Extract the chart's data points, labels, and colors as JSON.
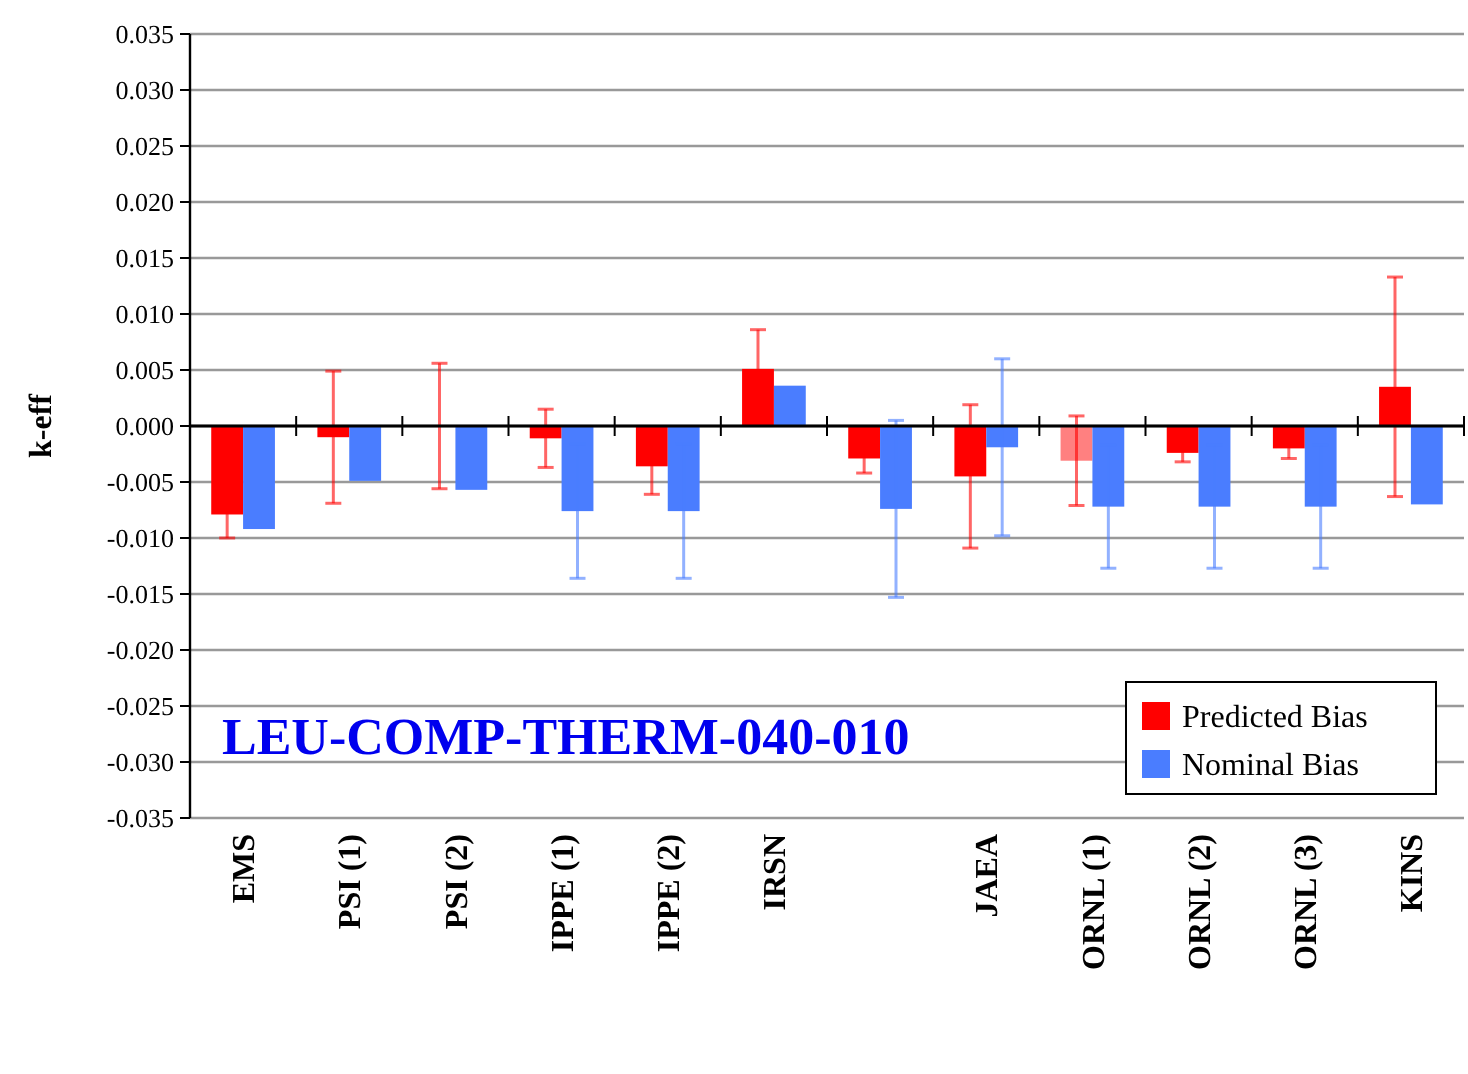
{
  "chart_data": {
    "type": "bar",
    "ylabel": "k-eff",
    "categories": [
      "EMS",
      "PSI (1)",
      "PSI (2)",
      "IPPE (1)",
      "IPPE (2)",
      "IRSN",
      null,
      "JAEA",
      "ORNL (1)",
      "ORNL (2)",
      "ORNL (3)",
      "KINS"
    ],
    "series": [
      {
        "name": "Predicted Bias",
        "color": "#ff0000",
        "colors": [
          "#ff0000",
          "#ff0000",
          "#ff0000",
          "#ff0000",
          "#ff0000",
          "#ff0000",
          "#ff0000",
          "#ff0000",
          "#ff8080",
          "#ff0000",
          "#ff0000",
          "#ff0000"
        ],
        "values": [
          -0.0079,
          -0.001,
          0,
          -0.0011,
          -0.0036,
          0.0051,
          -0.0029,
          -0.0045,
          -0.0031,
          -0.0024,
          -0.002,
          0.0035
        ],
        "errors": [
          0.0021,
          0.0059,
          0.0056,
          0.0026,
          0.0025,
          0.0035,
          0.0013,
          0.0064,
          0.004,
          0.0008,
          0.0009,
          0.0098
        ]
      },
      {
        "name": "Nominal Bias",
        "color": "#4a7dff",
        "values": [
          -0.0092,
          -0.0049,
          -0.0057,
          -0.0076,
          -0.0076,
          0.0036,
          -0.0074,
          -0.0019,
          -0.0072,
          -0.0072,
          -0.0072,
          -0.007
        ],
        "errors": [
          null,
          null,
          null,
          0.006,
          0.006,
          null,
          0.0079,
          0.0079,
          0.0055,
          0.0055,
          0.0055,
          null
        ]
      }
    ],
    "ylim": [
      -0.035,
      0.035
    ],
    "yticks": [
      {
        "value": 0.035,
        "label": "0.035"
      },
      {
        "value": 0.03,
        "label": "0.030"
      },
      {
        "value": 0.025,
        "label": "0.025"
      },
      {
        "value": 0.02,
        "label": "0.020"
      },
      {
        "value": 0.015,
        "label": "0.015"
      },
      {
        "value": 0.01,
        "label": "0.010"
      },
      {
        "value": 0.005,
        "label": "0.005"
      },
      {
        "value": 0,
        "label": "0.000"
      },
      {
        "value": -0.005,
        "label": "-0.005"
      },
      {
        "value": -0.01,
        "label": "-0.010"
      },
      {
        "value": -0.015,
        "label": "-0.015"
      },
      {
        "value": -0.02,
        "label": "-0.020"
      },
      {
        "value": -0.025,
        "label": "-0.025"
      },
      {
        "value": -0.03,
        "label": "-0.030"
      },
      {
        "value": -0.035,
        "label": "-0.035"
      }
    ],
    "grid": "y",
    "legend": "bottom right",
    "annotations": [
      "LEU-COMP-THERM-040-010"
    ]
  }
}
